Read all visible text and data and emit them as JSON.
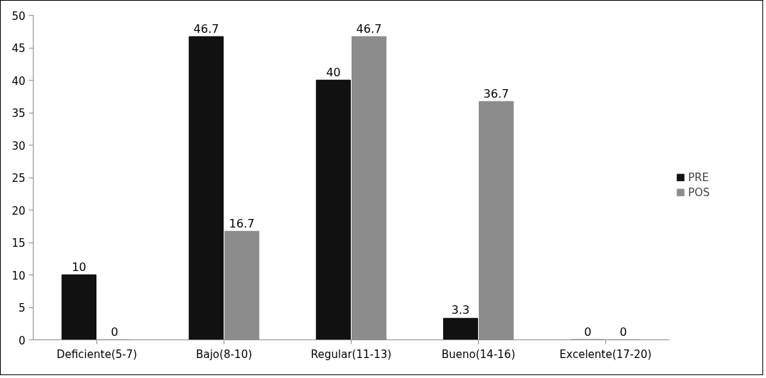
{
  "chart_data": {
    "type": "bar",
    "categories": [
      "Deficiente(5-7)",
      "Bajo(8-10)",
      "Regular(11-13)",
      "Bueno(14-16)",
      "Excelente(17-20)"
    ],
    "series": [
      {
        "name": "PRE",
        "color": "#111111",
        "values": [
          10,
          46.7,
          40,
          3.3,
          0
        ]
      },
      {
        "name": "POS",
        "color": "#8c8c8c",
        "values": [
          0,
          16.7,
          46.7,
          36.7,
          0
        ]
      }
    ],
    "ylim": [
      0,
      50
    ],
    "yticks": [
      0,
      5,
      10,
      15,
      20,
      25,
      30,
      35,
      40,
      45,
      50
    ],
    "grid": false,
    "legend": "right",
    "data_labels": true
  }
}
